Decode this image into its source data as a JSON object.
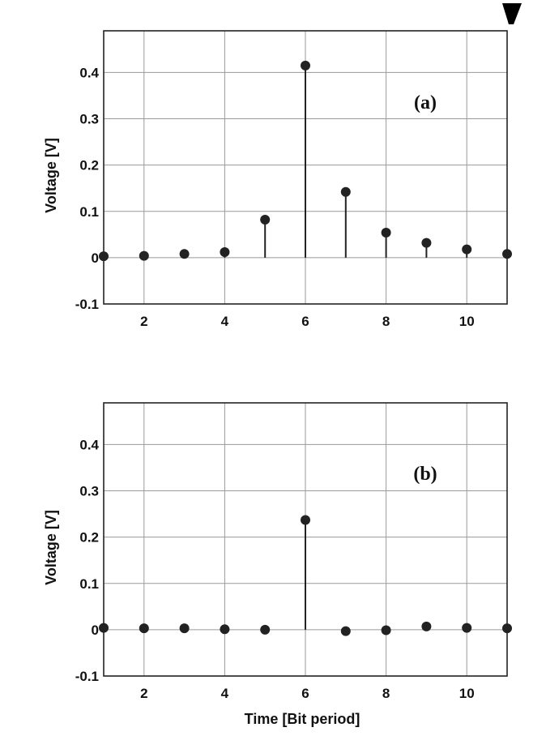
{
  "chart_data": [
    {
      "type": "stem",
      "panel_label": "(a)",
      "x": [
        1,
        2,
        3,
        4,
        5,
        6,
        7,
        8,
        9,
        10,
        11
      ],
      "values": [
        0.003,
        0.004,
        0.008,
        0.012,
        0.082,
        0.415,
        0.142,
        0.054,
        0.032,
        0.018,
        0.008
      ],
      "xlim": [
        1,
        11
      ],
      "ylim": [
        -0.1,
        0.49
      ],
      "xticks": [
        "2",
        "4",
        "6",
        "8",
        "10"
      ],
      "yticks": [
        "-0.1",
        "0",
        "0.1",
        "0.2",
        "0.3",
        "0.4"
      ],
      "xlabel": "",
      "ylabel": "Voltage [V]",
      "grid": true
    },
    {
      "type": "stem",
      "panel_label": "(b)",
      "x": [
        1,
        2,
        3,
        4,
        5,
        6,
        7,
        8,
        9,
        10,
        11
      ],
      "values": [
        0.004,
        0.003,
        0.003,
        0.001,
        0.0,
        0.237,
        -0.003,
        -0.001,
        0.007,
        0.004,
        0.003
      ],
      "xlim": [
        1,
        11
      ],
      "ylim": [
        -0.1,
        0.49
      ],
      "xticks": [
        "2",
        "4",
        "6",
        "8",
        "10"
      ],
      "yticks": [
        "-0.1",
        "0",
        "0.1",
        "0.2",
        "0.3",
        "0.4"
      ],
      "xlabel": "Time [Bit period]",
      "ylabel": "Voltage [V]",
      "grid": true
    }
  ]
}
